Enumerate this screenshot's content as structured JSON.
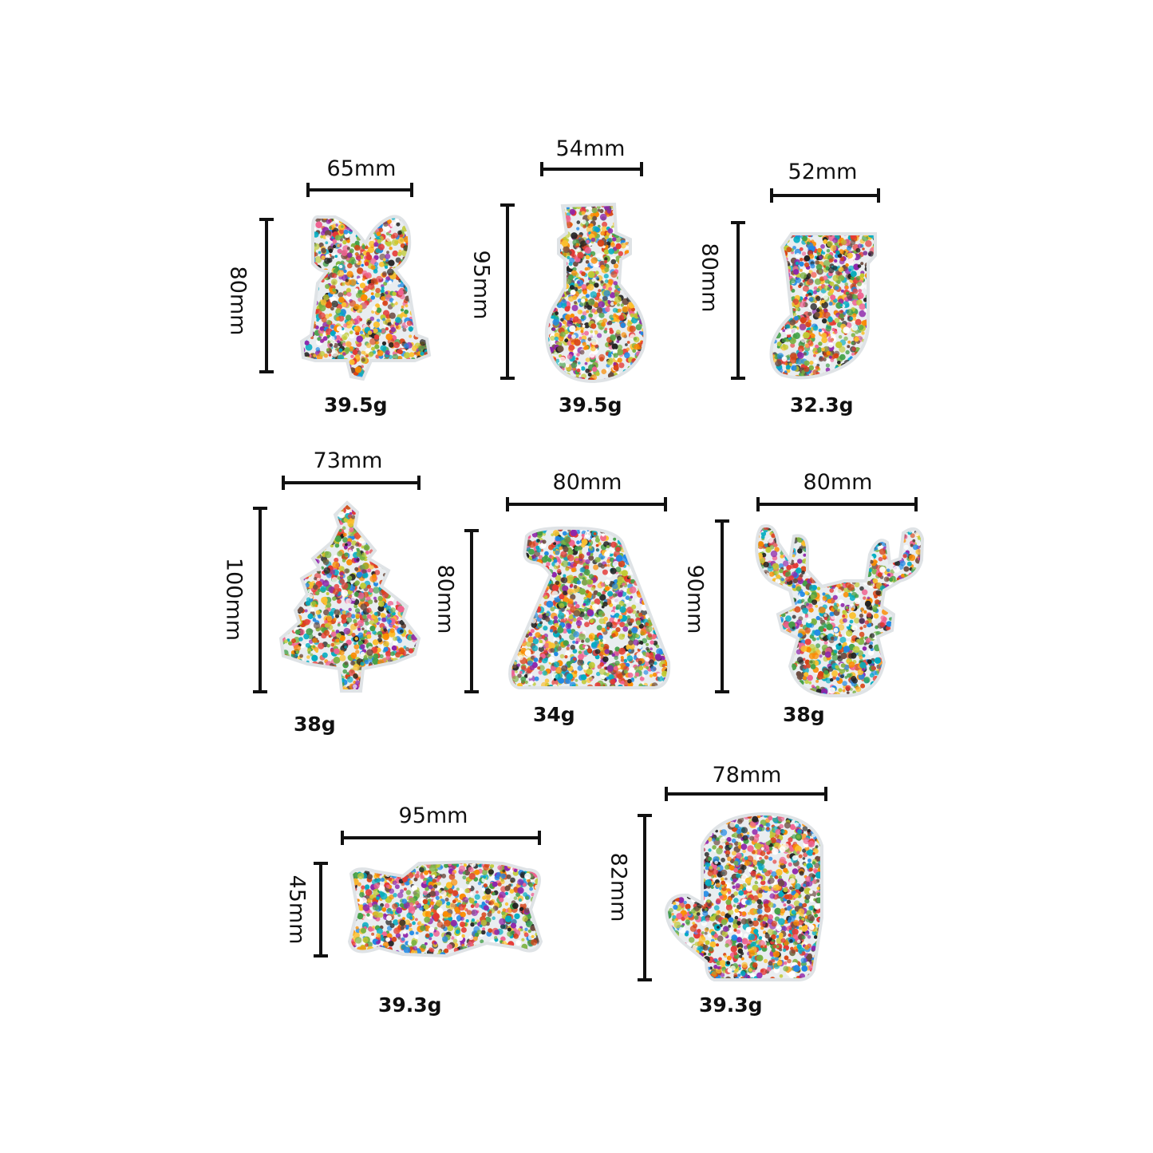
{
  "shapes": [
    {
      "name": "bell",
      "width": "65mm",
      "height": "80mm",
      "weight": "39.5g",
      "icon": "bell-icon"
    },
    {
      "name": "snowman",
      "width": "54mm",
      "height": "95mm",
      "weight": "39.5g",
      "icon": "snowman-icon"
    },
    {
      "name": "stocking",
      "width": "52mm",
      "height": "80mm",
      "weight": "32.3g",
      "icon": "stocking-icon"
    },
    {
      "name": "tree",
      "width": "73mm",
      "height": "100mm",
      "weight": "38g",
      "icon": "christmas-tree-icon"
    },
    {
      "name": "santa-hat",
      "width": "80mm",
      "height": "80mm",
      "weight": "34g",
      "icon": "santa-hat-icon"
    },
    {
      "name": "reindeer",
      "width": "80mm",
      "height": "90mm",
      "weight": "38g",
      "icon": "reindeer-icon"
    },
    {
      "name": "candy",
      "width": "95mm",
      "height": "45mm",
      "weight": "39.3g",
      "icon": "candy-icon"
    },
    {
      "name": "mitten",
      "width": "78mm",
      "height": "82mm",
      "weight": "39.3g",
      "icon": "mitten-icon"
    }
  ],
  "colors": {
    "background": "#ffffff",
    "line": "#111111",
    "resin": "#e9edf0",
    "beads": [
      "#e53935",
      "#fbc02d",
      "#43a047",
      "#1e88e5",
      "#fb8c00",
      "#8e24aa",
      "#00acc1",
      "#f06292",
      "#212121",
      "#c0ca33",
      "#d84315",
      "#ffffff",
      "#6d4c41",
      "#7cb342"
    ]
  }
}
